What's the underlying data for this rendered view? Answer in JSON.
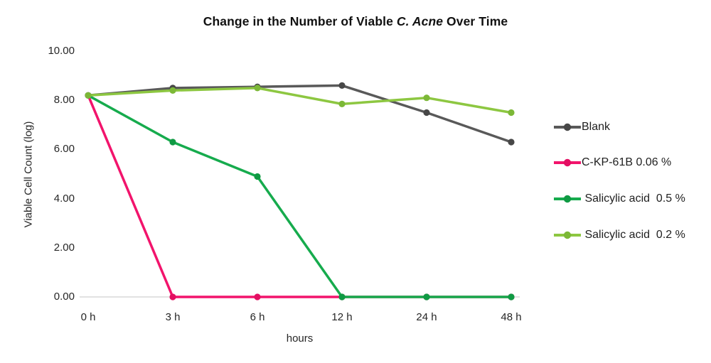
{
  "chart_data": {
    "type": "line",
    "title": {
      "prefix": "Change in the Number of Viable ",
      "italic": "C. Acne",
      "suffix": " Over Time"
    },
    "xlabel": "hours",
    "ylabel": "Viable Cell Count (log)",
    "categories": [
      "0 h",
      "3 h",
      "6 h",
      "12 h",
      "24 h",
      "48 h"
    ],
    "y_ticks": [
      "0.00",
      "2.00",
      "4.00",
      "6.00",
      "8.00",
      "10.00"
    ],
    "ylim": [
      0,
      10
    ],
    "grid": false,
    "legend_position": "right",
    "axis_line_color": "#d9d9d9",
    "series": [
      {
        "name": "Blank",
        "color": "#595959",
        "marker_color": "#474747",
        "values": [
          8.2,
          8.5,
          8.55,
          8.6,
          7.5,
          6.3
        ]
      },
      {
        "name": "C-KP-61B 0.06 %",
        "color": "#f2146c",
        "marker_color": "#e30f62",
        "values": [
          8.2,
          0,
          0,
          0,
          0,
          0
        ]
      },
      {
        "name": " Salicylic acid  0.5 %",
        "color": "#16ab4d",
        "marker_color": "#0f9a43",
        "values": [
          8.2,
          6.3,
          4.9,
          0,
          0,
          0
        ]
      },
      {
        "name": " Salicylic acid  0.2 %",
        "color": "#8dc741",
        "marker_color": "#7cb837",
        "values": [
          8.2,
          8.4,
          8.5,
          7.85,
          8.1,
          7.5
        ]
      }
    ]
  }
}
